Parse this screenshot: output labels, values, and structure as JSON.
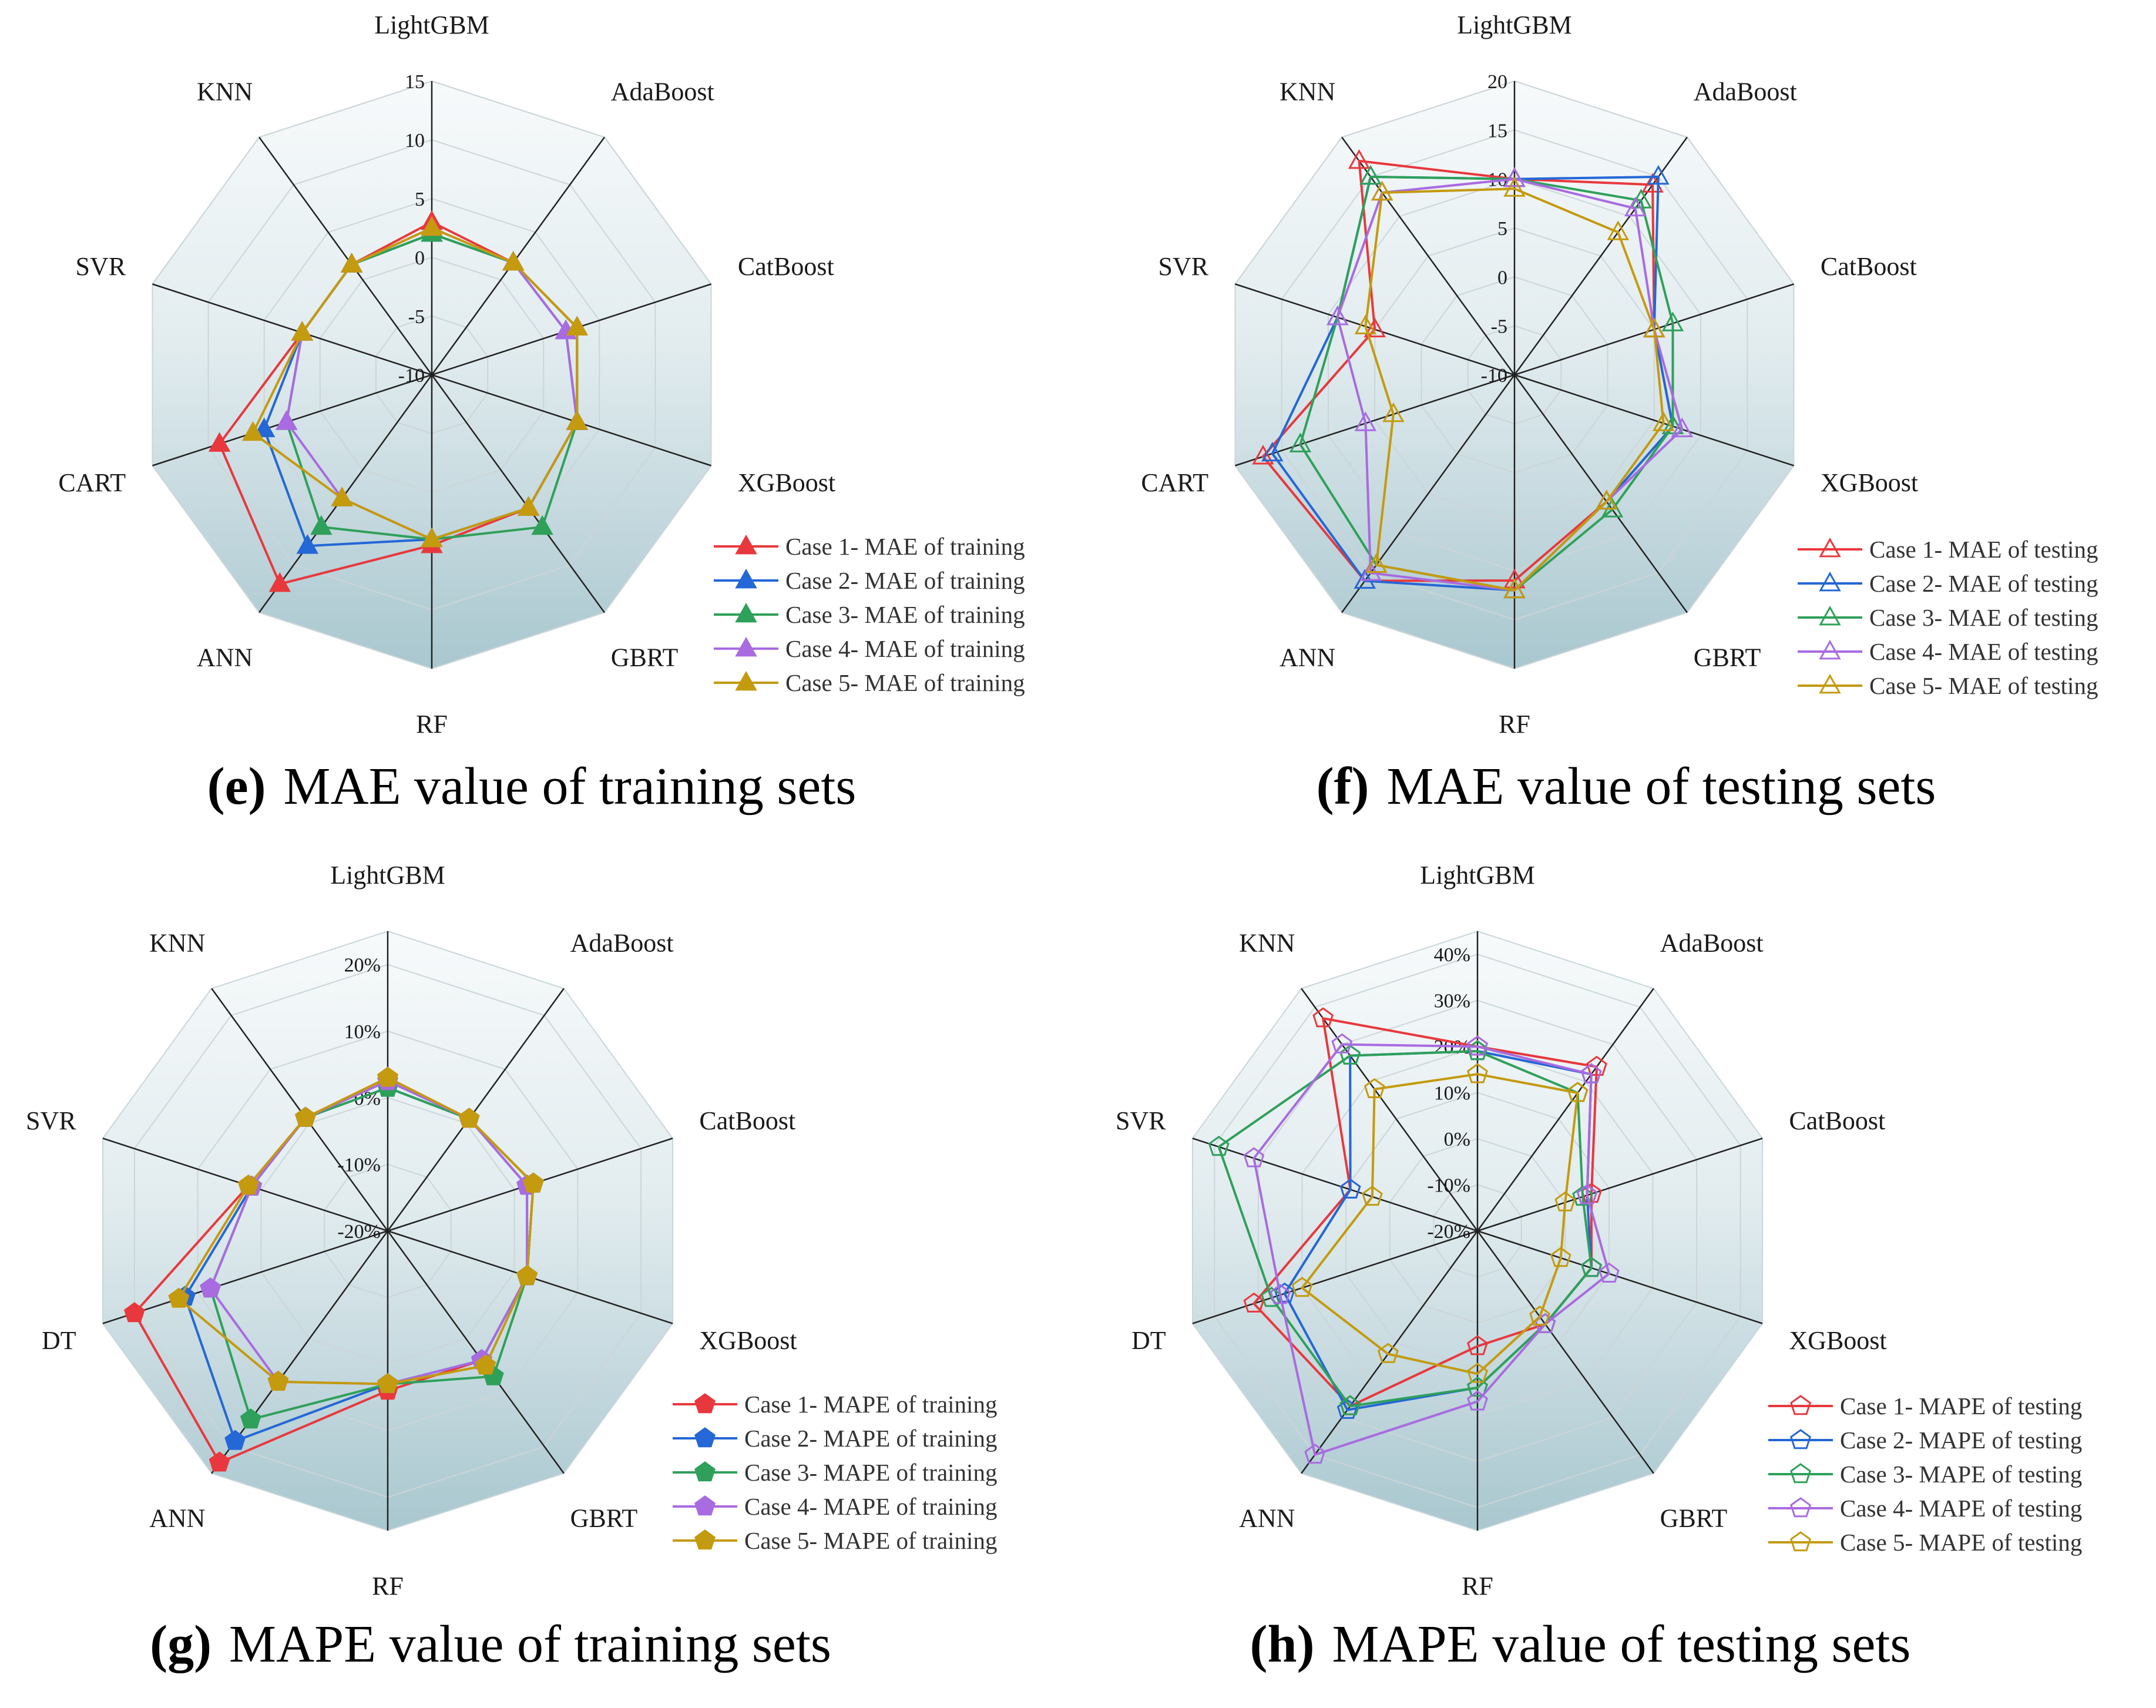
{
  "chart_data": [
    {
      "type": "radar",
      "caption_letter": "(e)",
      "caption_text": "MAE value of training sets",
      "axes": [
        "LightGBM",
        "AdaBoost",
        "CatBoost",
        "XGBoost",
        "GBRT",
        "RF",
        "ANN",
        "CART",
        "SVR",
        "KNN"
      ],
      "rmin": -10,
      "rmax": 15,
      "ticks": [
        -10,
        -5,
        0,
        5,
        10,
        15
      ],
      "tick_labels": [
        "-10",
        "-5",
        "0",
        "5",
        "10",
        "15"
      ],
      "marker": "triangle",
      "filled": true,
      "series": [
        {
          "name": "Case 1- MAE of training",
          "color": "#e8383d",
          "values": [
            3,
            1.8,
            3,
            3,
            4,
            4.5,
            12,
            9,
            1.6,
            1.6
          ]
        },
        {
          "name": "Case 2- MAE of training",
          "color": "#2467d6",
          "values": [
            2,
            1.8,
            2,
            3,
            4,
            4,
            8,
            5,
            1.6,
            1.6
          ]
        },
        {
          "name": "Case 3- MAE of training",
          "color": "#2fa05a",
          "values": [
            2,
            1.8,
            3,
            3,
            6,
            4,
            6,
            3,
            1.6,
            1.6
          ]
        },
        {
          "name": "Case 4- MAE of training",
          "color": "#a86be0",
          "values": [
            2.5,
            1.8,
            2,
            3,
            4,
            4,
            3,
            3,
            1.6,
            1.6
          ]
        },
        {
          "name": "Case 5- MAE of training",
          "color": "#c49a0e",
          "values": [
            2.5,
            1.8,
            3,
            3,
            4,
            4,
            3,
            6,
            1.6,
            1.6
          ]
        }
      ]
    },
    {
      "type": "radar",
      "caption_letter": "(f)",
      "caption_text": "MAE value of testing sets",
      "axes": [
        "LightGBM",
        "AdaBoost",
        "CatBoost",
        "XGBoost",
        "GBRT",
        "RF",
        "ANN",
        "CART",
        "SVR",
        "KNN"
      ],
      "rmin": -10,
      "rmax": 20,
      "ticks": [
        -10,
        -5,
        0,
        5,
        10,
        15,
        20
      ],
      "tick_labels": [
        "-10",
        "-5",
        "0",
        "5",
        "10",
        "15",
        "20"
      ],
      "marker": "triangle",
      "filled": false,
      "series": [
        {
          "name": "Case 1- MAE of testing",
          "color": "#e8383d",
          "values": [
            10,
            14,
            5,
            7,
            6,
            11,
            16,
            17,
            5,
            17
          ]
        },
        {
          "name": "Case 2- MAE of testing",
          "color": "#2467d6",
          "values": [
            10,
            15,
            5,
            7,
            6,
            12,
            16,
            16,
            9,
            15
          ]
        },
        {
          "name": "Case 3- MAE of testing",
          "color": "#2fa05a",
          "values": [
            10,
            12,
            7,
            7,
            7,
            12,
            14,
            13,
            9,
            15
          ]
        },
        {
          "name": "Case 4- MAE of testing",
          "color": "#a86be0",
          "values": [
            10,
            11,
            5,
            8,
            6,
            12,
            15,
            6,
            9,
            13
          ]
        },
        {
          "name": "Case 5- MAE of testing",
          "color": "#c49a0e",
          "values": [
            9,
            8,
            5,
            6,
            6,
            12,
            14,
            3,
            6,
            13
          ]
        }
      ]
    },
    {
      "type": "radar",
      "caption_letter": "(g)",
      "caption_text": "MAPE value of training sets",
      "axes": [
        "LightGBM",
        "AdaBoost",
        "CatBoost",
        "XGBoost",
        "GBRT",
        "RF",
        "ANN",
        "DT",
        "SVR",
        "KNN"
      ],
      "rmin": -20,
      "rmax": 25,
      "ticks": [
        -20,
        -10,
        0,
        10,
        20
      ],
      "tick_labels": [
        "-20%",
        "-10%",
        "0%",
        "10%",
        "20%"
      ],
      "marker": "pentagon",
      "filled": true,
      "series": [
        {
          "name": "Case 1- MAPE of training",
          "color": "#e8383d",
          "values": [
            3,
            0.8,
            3,
            2,
            4,
            4,
            23,
            20,
            2,
            1
          ]
        },
        {
          "name": "Case 2- MAPE of training",
          "color": "#2467d6",
          "values": [
            1.5,
            0.8,
            2,
            2,
            4,
            3,
            19,
            12,
            1.5,
            1
          ]
        },
        {
          "name": "Case 3- MAPE of training",
          "color": "#2fa05a",
          "values": [
            1.5,
            0.8,
            3,
            2,
            7,
            3,
            15,
            8,
            1.5,
            1
          ]
        },
        {
          "name": "Case 4- MAPE of training",
          "color": "#a86be0",
          "values": [
            2.5,
            0.8,
            2,
            2,
            4,
            3,
            8,
            8,
            1.5,
            1
          ]
        },
        {
          "name": "Case 5- MAPE of training",
          "color": "#c49a0e",
          "values": [
            3,
            0.8,
            3,
            2,
            5,
            3,
            8,
            13,
            2,
            1
          ]
        }
      ]
    },
    {
      "type": "radar",
      "caption_letter": "(h)",
      "caption_text": "MAPE value of testing sets",
      "axes": [
        "LightGBM",
        "AdaBoost",
        "CatBoost",
        "XGBoost",
        "GBRT",
        "RF",
        "ANN",
        "DT",
        "SVR",
        "KNN"
      ],
      "rmin": -20,
      "rmax": 45,
      "ticks": [
        -20,
        -10,
        0,
        10,
        20,
        30,
        40
      ],
      "tick_labels": [
        "-20%",
        "-10%",
        "0%",
        "10%",
        "20%",
        "30%",
        "40%"
      ],
      "marker": "pentagon",
      "filled": false,
      "series": [
        {
          "name": "Case 1- MAPE of testing",
          "color": "#e8383d",
          "values": [
            20,
            24,
            6,
            6,
            5,
            5,
            27,
            31,
            9,
            37
          ]
        },
        {
          "name": "Case 2- MAPE of testing",
          "color": "#2467d6",
          "values": [
            19,
            22,
            5,
            6,
            5,
            14,
            28,
            24,
            9,
            27
          ]
        },
        {
          "name": "Case 3- MAPE of testing",
          "color": "#2fa05a",
          "values": [
            19,
            17,
            4,
            6,
            5,
            14,
            27,
            27,
            39,
            27
          ]
        },
        {
          "name": "Case 4- MAPE of testing",
          "color": "#a86be0",
          "values": [
            20,
            22,
            5,
            10,
            5,
            17,
            40,
            25,
            31,
            30
          ]
        },
        {
          "name": "Case 5- MAPE of testing",
          "color": "#c49a0e",
          "values": [
            14,
            17,
            0,
            -1,
            3,
            11,
            13,
            20,
            4,
            18
          ]
        }
      ]
    }
  ]
}
